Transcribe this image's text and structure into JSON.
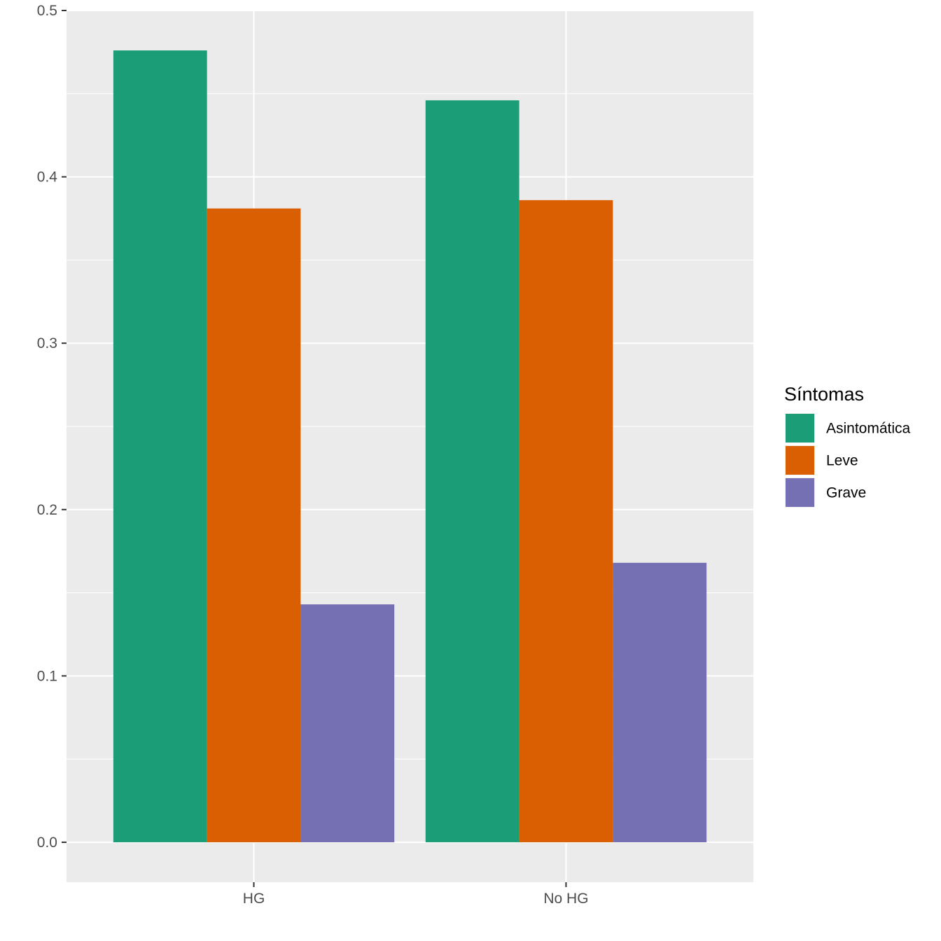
{
  "chart_data": {
    "type": "bar",
    "title": "",
    "xlabel": "",
    "ylabel": "",
    "categories": [
      "HG",
      "No HG"
    ],
    "series": [
      {
        "name": "Asintomática",
        "values": [
          0.476,
          0.446
        ],
        "color": "#1B9E77"
      },
      {
        "name": "Leve",
        "values": [
          0.381,
          0.386
        ],
        "color": "#D95F02"
      },
      {
        "name": "Grave",
        "values": [
          0.143,
          0.168
        ],
        "color": "#7570B3"
      }
    ],
    "ylim": [
      -0.024,
      0.5
    ],
    "yticks": [
      0.0,
      0.1,
      0.2,
      0.3,
      0.4,
      0.5
    ],
    "ytick_labels": [
      "0.0",
      "0.1",
      "0.2",
      "0.3",
      "0.4",
      "0.5"
    ],
    "grid": true,
    "legend": {
      "title": "Síntomas",
      "position": "right"
    },
    "panel_color": "#EBEBEB",
    "grid_color": "#FFFFFF"
  }
}
